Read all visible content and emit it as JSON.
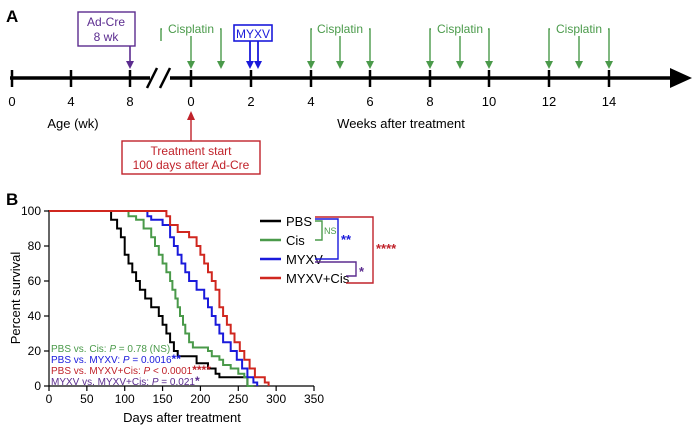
{
  "panel_a": {
    "letter": "A",
    "age_ticks": [
      "0",
      "4",
      "8"
    ],
    "week_ticks": [
      "0",
      "2",
      "4",
      "6",
      "8",
      "10",
      "12",
      "14"
    ],
    "age_label": "Age (wk)",
    "weeks_label": "Weeks after treatment",
    "adcre_line1": "Ad-Cre",
    "adcre_line2": "8 wk",
    "cisplatin_label": "Cisplatin",
    "myxv_label": "MYXV",
    "treatment_line1": "Treatment start",
    "treatment_line2": "100 days after Ad-Cre",
    "colors": {
      "adcre": "#5b2c8f",
      "cisplatin": "#4a9a4a",
      "myxv": "#1a1adb",
      "treatment": "#c0222a"
    }
  },
  "panel_b": {
    "letter": "B",
    "legend": [
      "PBS",
      "Cis",
      "MYXV",
      "MYXV+Cis"
    ],
    "comparisons": [
      {
        "label": "NS",
        "color": "#4a9a4a"
      },
      {
        "label": "**",
        "color": "#1a1adb"
      },
      {
        "label": "****",
        "color": "#c0222a"
      },
      {
        "label": "*",
        "color": "#5b2c8f"
      }
    ],
    "stats": [
      {
        "pre": "PBS vs. Cis: ",
        "p": "P",
        "post": " = 0.78 (NS)",
        "stars": "",
        "color": "#4a9a4a"
      },
      {
        "pre": "PBS vs. MYXV: ",
        "p": "P",
        "post": " = 0.0016",
        "stars": "**",
        "color": "#1a1adb"
      },
      {
        "pre": "PBS vs. MYXV+Cis: ",
        "p": "P",
        "post": " < 0.0001",
        "stars": "****",
        "color": "#c0222a"
      },
      {
        "pre": "MYXV vs. MYXV+Cis: ",
        "p": "P",
        "post": " = 0.021",
        "stars": "*",
        "color": "#5b2c8f"
      }
    ]
  },
  "chart_data": {
    "type": "line",
    "xlabel": "Days after treatment",
    "ylabel": "Percent survival",
    "xlim": [
      0,
      350
    ],
    "ylim": [
      0,
      100
    ],
    "xticks": [
      0,
      50,
      100,
      150,
      200,
      250,
      300,
      350
    ],
    "yticks": [
      0,
      20,
      40,
      60,
      80,
      100
    ],
    "grid": false,
    "legend_position": "top-right",
    "series": [
      {
        "name": "PBS",
        "color": "#000000",
        "points": [
          [
            0,
            100
          ],
          [
            75,
            100
          ],
          [
            82,
            95
          ],
          [
            90,
            90
          ],
          [
            95,
            85
          ],
          [
            100,
            75
          ],
          [
            105,
            70
          ],
          [
            110,
            65
          ],
          [
            115,
            60
          ],
          [
            120,
            55
          ],
          [
            127,
            50
          ],
          [
            135,
            45
          ],
          [
            145,
            40
          ],
          [
            150,
            35
          ],
          [
            155,
            30
          ],
          [
            160,
            25
          ],
          [
            165,
            20
          ],
          [
            170,
            17
          ],
          [
            190,
            17
          ],
          [
            195,
            13
          ],
          [
            205,
            13
          ],
          [
            210,
            10
          ],
          [
            215,
            10
          ],
          [
            220,
            7
          ],
          [
            225,
            5
          ],
          [
            260,
            5
          ],
          [
            262,
            0
          ],
          [
            268,
            0
          ]
        ]
      },
      {
        "name": "Cis",
        "color": "#4a9a4a",
        "points": [
          [
            0,
            100
          ],
          [
            100,
            100
          ],
          [
            105,
            97
          ],
          [
            115,
            95
          ],
          [
            125,
            90
          ],
          [
            135,
            85
          ],
          [
            140,
            80
          ],
          [
            145,
            75
          ],
          [
            150,
            70
          ],
          [
            155,
            65
          ],
          [
            160,
            60
          ],
          [
            163,
            55
          ],
          [
            167,
            50
          ],
          [
            170,
            45
          ],
          [
            173,
            40
          ],
          [
            177,
            35
          ],
          [
            180,
            30
          ],
          [
            185,
            25
          ],
          [
            190,
            22
          ],
          [
            210,
            20
          ],
          [
            215,
            17
          ],
          [
            225,
            15
          ],
          [
            230,
            12
          ],
          [
            240,
            10
          ],
          [
            250,
            7
          ],
          [
            258,
            5
          ],
          [
            262,
            0
          ],
          [
            270,
            0
          ]
        ]
      },
      {
        "name": "MYXV",
        "color": "#1a1adb",
        "points": [
          [
            0,
            100
          ],
          [
            125,
            100
          ],
          [
            130,
            97
          ],
          [
            135,
            95
          ],
          [
            145,
            95
          ],
          [
            150,
            92
          ],
          [
            160,
            85
          ],
          [
            165,
            80
          ],
          [
            170,
            75
          ],
          [
            175,
            70
          ],
          [
            180,
            65
          ],
          [
            185,
            60
          ],
          [
            195,
            55
          ],
          [
            205,
            50
          ],
          [
            210,
            45
          ],
          [
            215,
            40
          ],
          [
            220,
            35
          ],
          [
            225,
            30
          ],
          [
            230,
            25
          ],
          [
            240,
            20
          ],
          [
            248,
            15
          ],
          [
            255,
            10
          ],
          [
            262,
            5
          ],
          [
            270,
            2
          ],
          [
            275,
            0
          ]
        ]
      },
      {
        "name": "MYXV+Cis",
        "color": "#d0271f",
        "points": [
          [
            0,
            100
          ],
          [
            150,
            100
          ],
          [
            155,
            97
          ],
          [
            160,
            92
          ],
          [
            170,
            88
          ],
          [
            180,
            88
          ],
          [
            185,
            85
          ],
          [
            195,
            80
          ],
          [
            200,
            75
          ],
          [
            205,
            70
          ],
          [
            210,
            65
          ],
          [
            215,
            60
          ],
          [
            220,
            55
          ],
          [
            225,
            45
          ],
          [
            230,
            40
          ],
          [
            235,
            35
          ],
          [
            240,
            30
          ],
          [
            245,
            25
          ],
          [
            252,
            20
          ],
          [
            258,
            15
          ],
          [
            265,
            10
          ],
          [
            272,
            5
          ],
          [
            285,
            2
          ],
          [
            290,
            0
          ]
        ]
      }
    ]
  }
}
